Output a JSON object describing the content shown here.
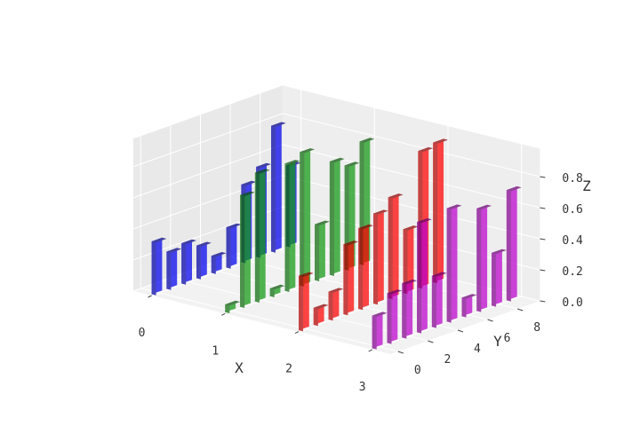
{
  "chart_data": {
    "type": "bar3d",
    "xlabel": "X",
    "ylabel": "Y",
    "zlabel": "Z",
    "xlim": [
      0,
      3
    ],
    "ylim": [
      0,
      9
    ],
    "zlim": [
      0,
      0.9
    ],
    "x_ticks": [
      "0",
      "1",
      "2",
      "3"
    ],
    "y_ticks": [
      "0",
      "2",
      "4",
      "6",
      "8"
    ],
    "z_ticks": [
      "0.0",
      "0.2",
      "0.4",
      "0.6",
      "0.8"
    ],
    "grid": true,
    "colors": {
      "pane_left": "#e9e9e9",
      "pane_back": "#eeeeee",
      "pane_floor": "#f2f2f2",
      "grid": "#ffffff"
    },
    "series": [
      {
        "x": 0,
        "color": "#0000ee",
        "y": [
          0,
          1,
          2,
          3,
          4,
          5,
          6,
          7,
          8,
          9
        ],
        "values": [
          0.34,
          0.24,
          0.26,
          0.21,
          0.11,
          0.26,
          0.5,
          0.58,
          0.81,
          0.52
        ]
      },
      {
        "x": 1,
        "color": "#119911",
        "y": [
          0,
          1,
          2,
          3,
          4,
          5,
          6,
          7,
          8,
          9
        ],
        "values": [
          0.05,
          0.72,
          0.83,
          0.05,
          0.82,
          0.86,
          0.36,
          0.73,
          0.67,
          0.79
        ]
      },
      {
        "x": 2,
        "color": "#ff0000",
        "y": [
          0,
          1,
          2,
          3,
          4,
          5,
          6,
          7,
          8,
          9
        ],
        "values": [
          0.35,
          0.11,
          0.18,
          0.45,
          0.52,
          0.58,
          0.65,
          0.41,
          0.88,
          0.9
        ]
      },
      {
        "x": 3,
        "color": "#bb00cc",
        "y": [
          0,
          1,
          2,
          3,
          4,
          5,
          6,
          7,
          8,
          9
        ],
        "values": [
          0.21,
          0.32,
          0.35,
          0.71,
          0.33,
          0.73,
          0.12,
          0.66,
          0.34,
          0.71
        ]
      }
    ]
  }
}
